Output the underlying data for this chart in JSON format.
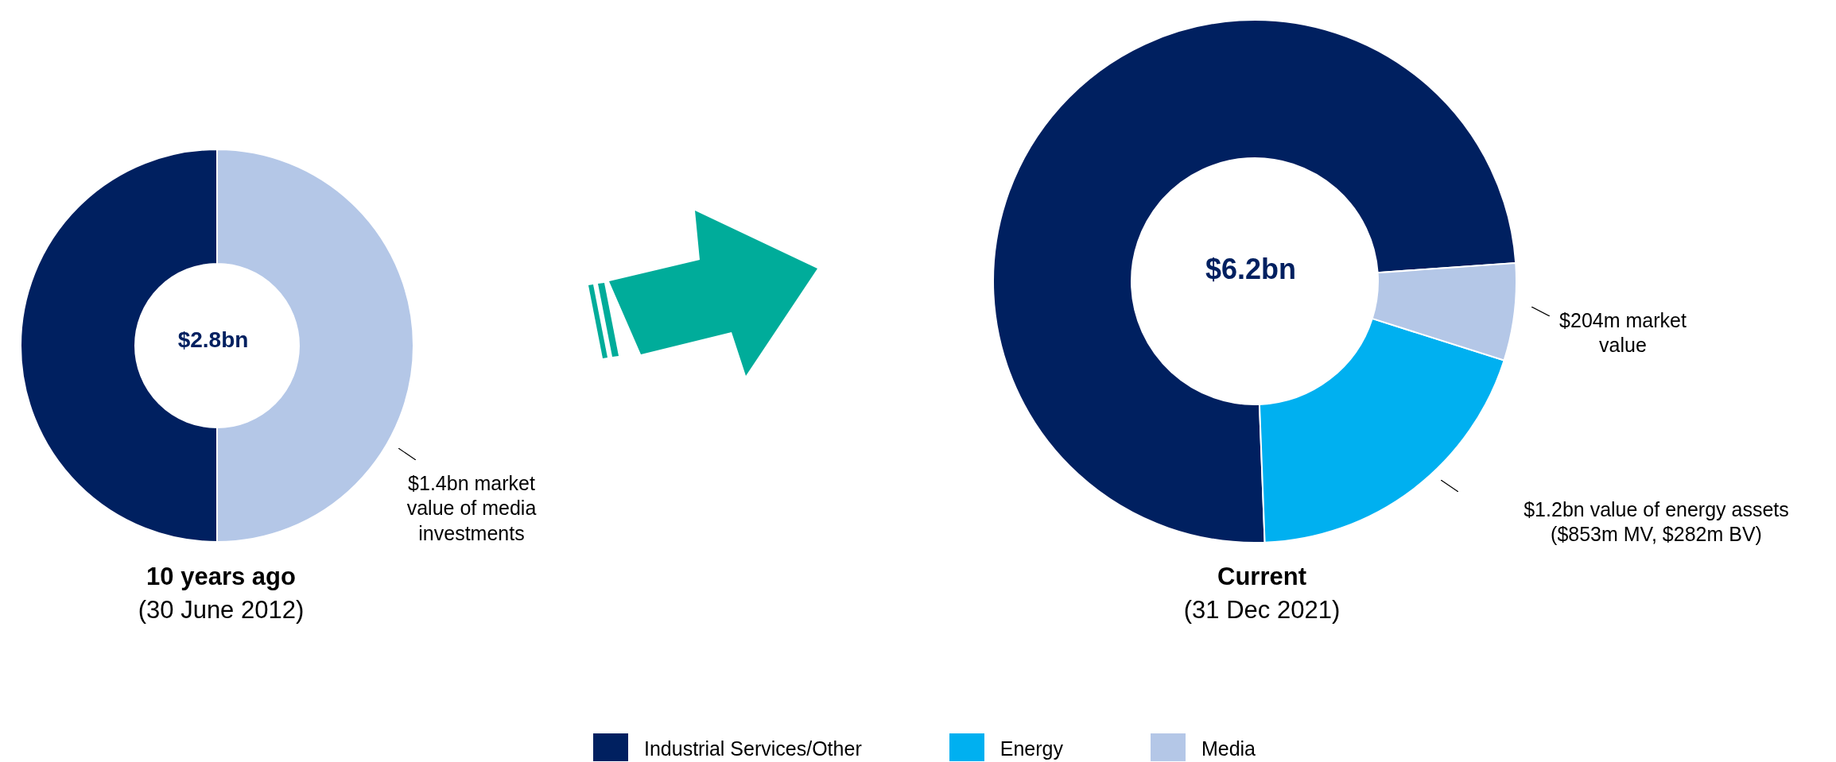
{
  "chart_data": [
    {
      "type": "donut",
      "title": "10 years ago",
      "subtitle": "(30 June 2012)",
      "categories": [
        null,
        null
      ],
      "values": [
        50,
        50
      ],
      "colors": [
        "#002060",
        "#b4c7e7"
      ],
      "annotations": [
        "$2.8bn",
        "$1.4bn market value of media investments"
      ]
    },
    {
      "type": "donut",
      "title": "Current",
      "subtitle": "(31 Dec 2021)",
      "categories": [
        "Industrial Services/Other",
        "Energy",
        "Media"
      ],
      "values": [
        74.5,
        19.5,
        6
      ],
      "colors": [
        "#002060",
        "#00b0f0",
        "#b4c7e7"
      ],
      "annotations": [
        "$6.2bn",
        "$204m market value",
        "$1.2bn value of energy assets ($853m MV, $282m BV)"
      ],
      "legend": "bottom"
    }
  ]
}
